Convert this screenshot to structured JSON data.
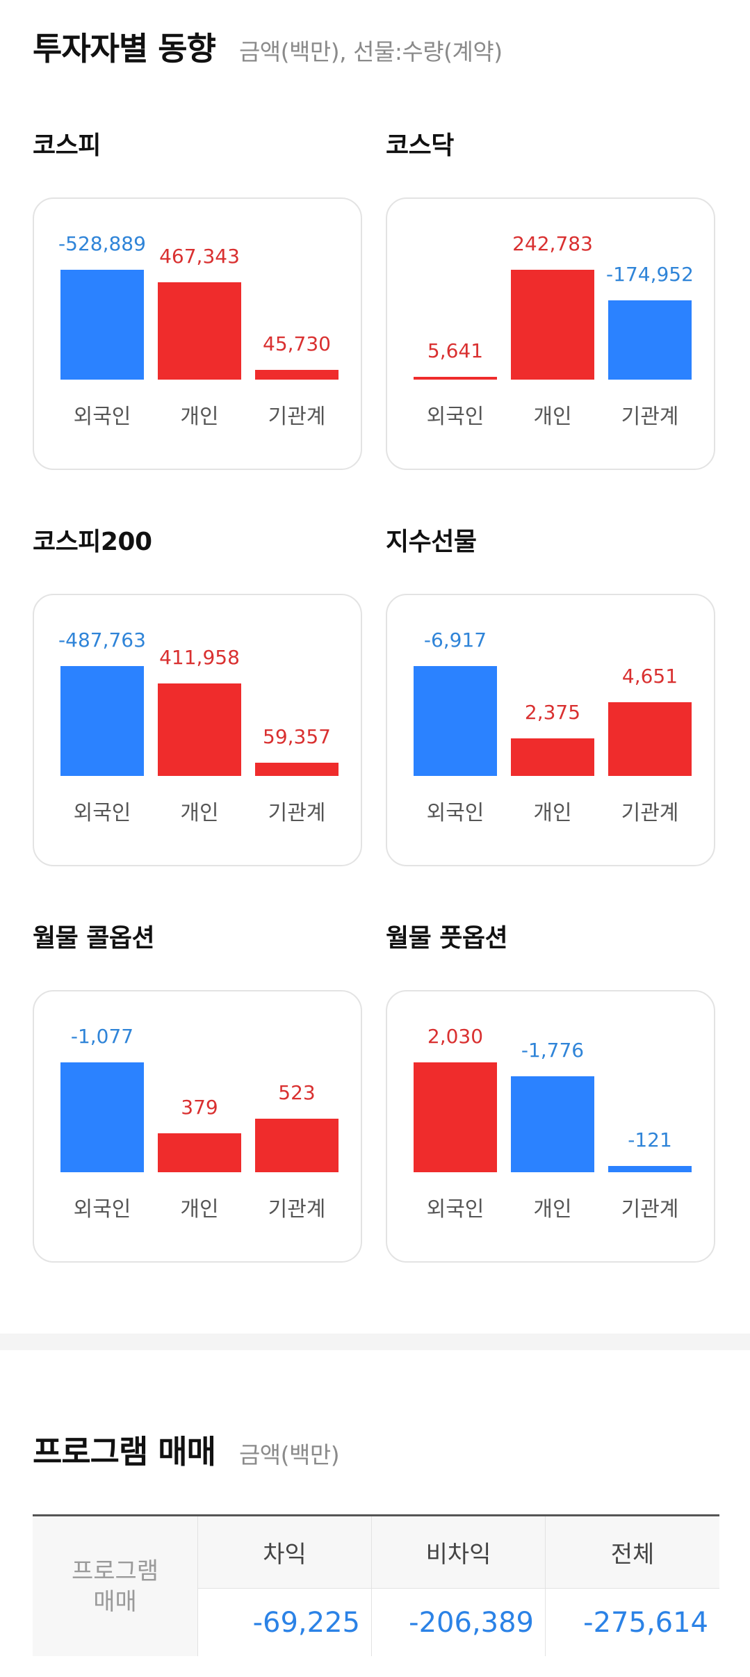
{
  "colors": {
    "buy": "#ef2c2c",
    "sell": "#2b82ff",
    "buy_text": "#d93030",
    "sell_text": "#2f84d8"
  },
  "investor": {
    "title": "투자자별 동향",
    "subtitle": "금액(백만), 선물:수량(계약)",
    "panels": [
      {
        "name": "코스피",
        "bars": [
          {
            "label": "외국인",
            "value": "-528,889",
            "sign": "neg"
          },
          {
            "label": "개인",
            "value": "467,343",
            "sign": "pos"
          },
          {
            "label": "기관계",
            "value": "45,730",
            "sign": "pos"
          }
        ]
      },
      {
        "name": "코스닥",
        "bars": [
          {
            "label": "외국인",
            "value": "5,641",
            "sign": "pos"
          },
          {
            "label": "개인",
            "value": "242,783",
            "sign": "pos"
          },
          {
            "label": "기관계",
            "value": "-174,952",
            "sign": "neg"
          }
        ]
      },
      {
        "name": "코스피200",
        "bars": [
          {
            "label": "외국인",
            "value": "-487,763",
            "sign": "neg"
          },
          {
            "label": "개인",
            "value": "411,958",
            "sign": "pos"
          },
          {
            "label": "기관계",
            "value": "59,357",
            "sign": "pos"
          }
        ]
      },
      {
        "name": "지수선물",
        "bars": [
          {
            "label": "외국인",
            "value": "-6,917",
            "sign": "neg"
          },
          {
            "label": "개인",
            "value": "2,375",
            "sign": "pos"
          },
          {
            "label": "기관계",
            "value": "4,651",
            "sign": "pos"
          }
        ]
      },
      {
        "name": "월물 콜옵션",
        "bars": [
          {
            "label": "외국인",
            "value": "-1,077",
            "sign": "neg"
          },
          {
            "label": "개인",
            "value": "379",
            "sign": "pos"
          },
          {
            "label": "기관계",
            "value": "523",
            "sign": "pos"
          }
        ]
      },
      {
        "name": "월물 풋옵션",
        "bars": [
          {
            "label": "외국인",
            "value": "2,030",
            "sign": "pos"
          },
          {
            "label": "개인",
            "value": "-1,776",
            "sign": "neg"
          },
          {
            "label": "기관계",
            "value": "-121",
            "sign": "neg"
          }
        ]
      }
    ]
  },
  "program": {
    "title": "프로그램 매매",
    "subtitle": "금액(백만)",
    "row_header": [
      "프로그램",
      "매매"
    ],
    "columns": [
      "차익",
      "비차익",
      "전체"
    ],
    "values": [
      "-69,225",
      "-206,389",
      "-275,614"
    ]
  },
  "chart_data": [
    {
      "type": "bar",
      "title": "코스피",
      "categories": [
        "외국인",
        "개인",
        "기관계"
      ],
      "values": [
        -528889,
        467343,
        45730
      ]
    },
    {
      "type": "bar",
      "title": "코스닥",
      "categories": [
        "외국인",
        "개인",
        "기관계"
      ],
      "values": [
        5641,
        242783,
        -174952
      ]
    },
    {
      "type": "bar",
      "title": "코스피200",
      "categories": [
        "외국인",
        "개인",
        "기관계"
      ],
      "values": [
        -487763,
        411958,
        59357
      ]
    },
    {
      "type": "bar",
      "title": "지수선물",
      "categories": [
        "외국인",
        "개인",
        "기관계"
      ],
      "values": [
        -6917,
        2375,
        4651
      ]
    },
    {
      "type": "bar",
      "title": "월물 콜옵션",
      "categories": [
        "외국인",
        "개인",
        "기관계"
      ],
      "values": [
        -1077,
        379,
        523
      ]
    },
    {
      "type": "bar",
      "title": "월물 풋옵션",
      "categories": [
        "외국인",
        "개인",
        "기관계"
      ],
      "values": [
        2030,
        -1776,
        -121
      ]
    }
  ]
}
